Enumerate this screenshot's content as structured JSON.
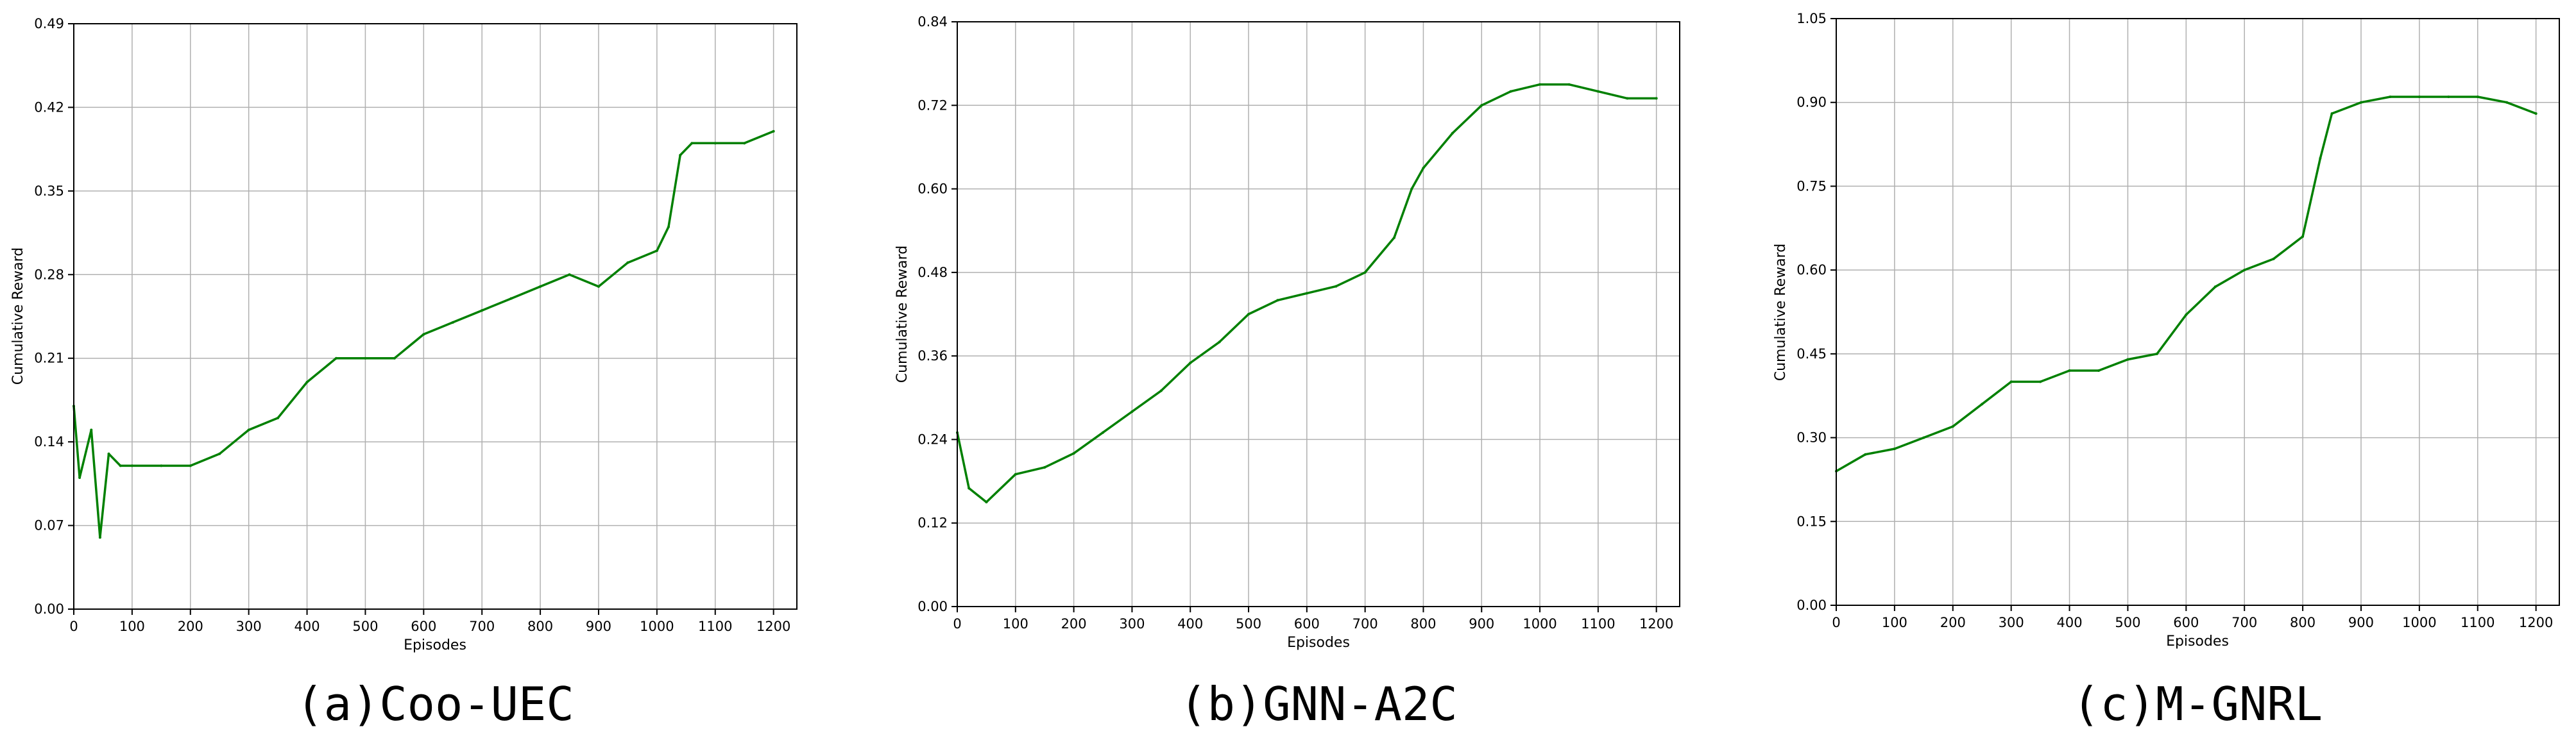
{
  "figure": {
    "line_color": "#008000",
    "grid_color": "#b0b0b0"
  },
  "chart_data": [
    {
      "type": "line",
      "caption": "(a)Coo-UEC",
      "xlabel": "Episodes",
      "ylabel": "Cumulative Reward",
      "xlim": [
        0,
        1240
      ],
      "ylim": [
        0.0,
        0.49
      ],
      "xticks": [
        0,
        100,
        200,
        300,
        400,
        500,
        600,
        700,
        800,
        900,
        1000,
        1100,
        1200
      ],
      "yticks": [
        "0.00",
        "0.07",
        "0.14",
        "0.21",
        "0.28",
        "0.35",
        "0.42",
        "0.49"
      ],
      "grid": true,
      "series": [
        {
          "x": [
            0,
            10,
            30,
            45,
            60,
            80,
            100,
            150,
            200,
            250,
            300,
            350,
            400,
            450,
            500,
            550,
            600,
            650,
            700,
            750,
            800,
            850,
            900,
            950,
            1000,
            1020,
            1040,
            1060,
            1100,
            1150,
            1200
          ],
          "y": [
            0.17,
            0.11,
            0.15,
            0.06,
            0.13,
            0.12,
            0.12,
            0.12,
            0.12,
            0.13,
            0.15,
            0.16,
            0.19,
            0.21,
            0.21,
            0.21,
            0.23,
            0.24,
            0.25,
            0.26,
            0.27,
            0.28,
            0.27,
            0.29,
            0.3,
            0.32,
            0.38,
            0.39,
            0.39,
            0.39,
            0.4
          ]
        }
      ]
    },
    {
      "type": "line",
      "caption": "(b)GNN-A2C",
      "xlabel": "Episodes",
      "ylabel": "Cumulative Reward",
      "xlim": [
        0,
        1240
      ],
      "ylim": [
        0.0,
        0.84
      ],
      "xticks": [
        0,
        100,
        200,
        300,
        400,
        500,
        600,
        700,
        800,
        900,
        1000,
        1100,
        1200
      ],
      "yticks": [
        "0.00",
        "0.12",
        "0.24",
        "0.36",
        "0.48",
        "0.60",
        "0.72",
        "0.84"
      ],
      "grid": true,
      "series": [
        {
          "x": [
            0,
            20,
            50,
            100,
            150,
            200,
            250,
            300,
            350,
            400,
            450,
            500,
            550,
            600,
            650,
            700,
            750,
            780,
            800,
            850,
            900,
            950,
            1000,
            1050,
            1100,
            1150,
            1200
          ],
          "y": [
            0.25,
            0.17,
            0.15,
            0.19,
            0.2,
            0.22,
            0.25,
            0.28,
            0.31,
            0.35,
            0.38,
            0.42,
            0.44,
            0.45,
            0.46,
            0.48,
            0.53,
            0.6,
            0.63,
            0.68,
            0.72,
            0.74,
            0.75,
            0.75,
            0.74,
            0.73,
            0.73
          ]
        }
      ]
    },
    {
      "type": "line",
      "caption": "(c)M-GNRL",
      "xlabel": "Episodes",
      "ylabel": "Cumulative Reward",
      "xlim": [
        0,
        1240
      ],
      "ylim": [
        0.0,
        1.05
      ],
      "xticks": [
        0,
        100,
        200,
        300,
        400,
        500,
        600,
        700,
        800,
        900,
        1000,
        1100,
        1200
      ],
      "yticks": [
        "0.00",
        "0.15",
        "0.30",
        "0.45",
        "0.60",
        "0.75",
        "0.90",
        "1.05"
      ],
      "grid": true,
      "series": [
        {
          "x": [
            0,
            50,
            100,
            150,
            200,
            250,
            300,
            350,
            400,
            450,
            500,
            550,
            600,
            650,
            700,
            750,
            800,
            830,
            850,
            900,
            950,
            1000,
            1050,
            1100,
            1150,
            1200
          ],
          "y": [
            0.24,
            0.27,
            0.28,
            0.3,
            0.32,
            0.36,
            0.4,
            0.4,
            0.42,
            0.42,
            0.44,
            0.45,
            0.52,
            0.57,
            0.6,
            0.62,
            0.66,
            0.8,
            0.88,
            0.9,
            0.91,
            0.91,
            0.91,
            0.91,
            0.9,
            0.88
          ]
        }
      ]
    }
  ]
}
